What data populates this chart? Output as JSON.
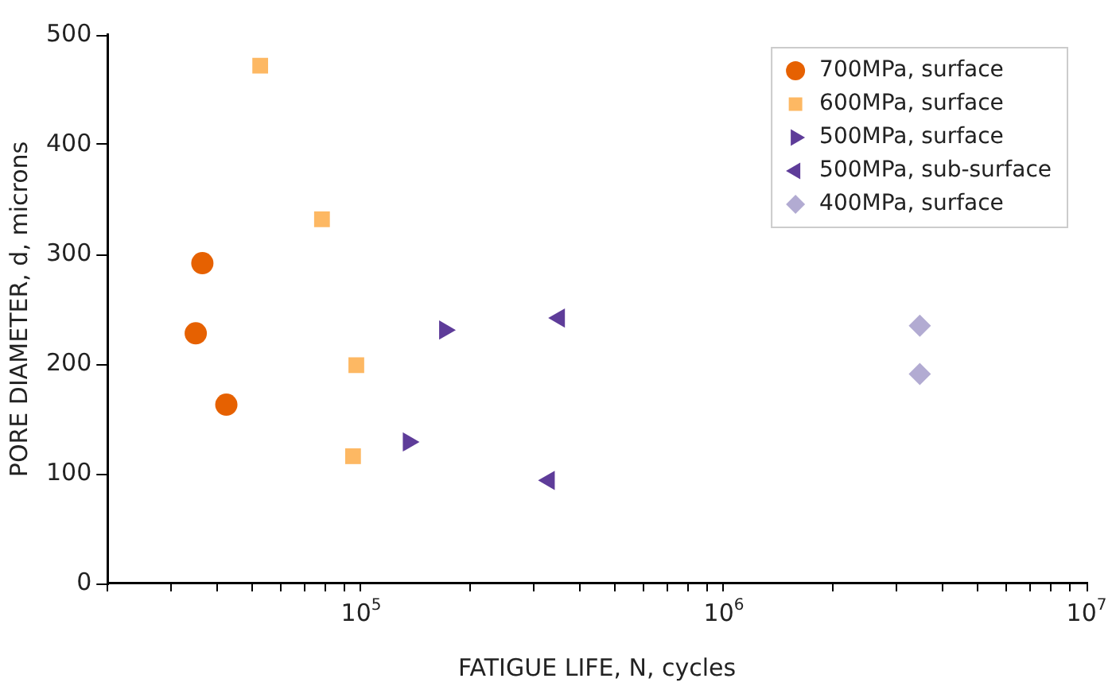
{
  "chart_data": {
    "type": "scatter",
    "xlabel": "FATIGUE LIFE, N, cycles",
    "ylabel": "PORE DIAMETER, d, microns",
    "log": "x",
    "xlim": [
      20000,
      10000000
    ],
    "ylim": [
      0,
      500
    ],
    "yticks": [
      0,
      100,
      200,
      300,
      400,
      500
    ],
    "xticks": [
      {
        "value": 20000,
        "label": null
      },
      {
        "value": 30000,
        "label": null
      },
      {
        "value": 40000,
        "label": null
      },
      {
        "value": 50000,
        "label": null
      },
      {
        "value": 60000,
        "label": null
      },
      {
        "value": 70000,
        "label": null
      },
      {
        "value": 80000,
        "label": null
      },
      {
        "value": 90000,
        "label": null
      },
      {
        "value": 100000,
        "label": "10$^{5}$"
      },
      {
        "value": 200000,
        "label": null
      },
      {
        "value": 300000,
        "label": null
      },
      {
        "value": 400000,
        "label": null
      },
      {
        "value": 500000,
        "label": null
      },
      {
        "value": 600000,
        "label": null
      },
      {
        "value": 700000,
        "label": null
      },
      {
        "value": 800000,
        "label": null
      },
      {
        "value": 900000,
        "label": null
      },
      {
        "value": 1000000,
        "label": "10$^{6}$"
      },
      {
        "value": 2000000,
        "label": null
      },
      {
        "value": 3000000,
        "label": null
      },
      {
        "value": 4000000,
        "label": null
      },
      {
        "value": 5000000,
        "label": null
      },
      {
        "value": 6000000,
        "label": null
      },
      {
        "value": 7000000,
        "label": null
      },
      {
        "value": 8000000,
        "label": null
      },
      {
        "value": 9000000,
        "label": null
      },
      {
        "value": 10000000,
        "label": "10$^{7}$"
      }
    ],
    "grid": false,
    "legend": "top right",
    "series": [
      {
        "name": "700MPa, surface",
        "color": "#e66101",
        "marker": "circle",
        "x": [
          35000,
          36500,
          42500
        ],
        "values": [
          228,
          292,
          163
        ]
      },
      {
        "name": "600MPa, surface",
        "color": "#fdb863",
        "marker": "square",
        "x": [
          52700,
          78000,
          97000,
          95000
        ],
        "values": [
          472,
          332,
          199,
          116
        ]
      },
      {
        "name": "500MPa, surface",
        "color": "#5e3c99",
        "marker": "triangle-right",
        "x": [
          135000,
          170000
        ],
        "values": [
          129,
          231
        ]
      },
      {
        "name": "500MPa, sub-surface",
        "color": "#5e3c99",
        "marker": "triangle-left",
        "x": [
          330000,
          352000
        ],
        "values": [
          94,
          242
        ]
      },
      {
        "name": "400MPa, surface",
        "color": "#b2abd2",
        "marker": "diamond",
        "x": [
          3470000,
          3470000
        ],
        "values": [
          235,
          191
        ]
      }
    ]
  }
}
